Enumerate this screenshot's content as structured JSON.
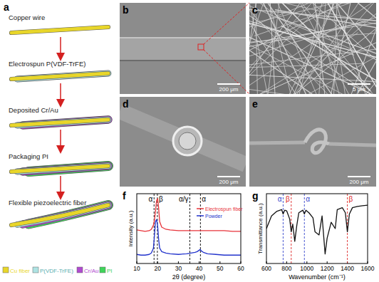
{
  "panel_labels": [
    "a",
    "b",
    "c",
    "d",
    "e",
    "f",
    "g"
  ],
  "schematic": {
    "steps": [
      "Copper wire",
      "Electrospun P(VDF-TrFE)",
      "Deposited Cr/Au",
      "Packaging PI",
      "Flexible piezoelectric fiber"
    ],
    "legend": [
      {
        "label": "Cu fiber",
        "color": "#e8d62a"
      },
      {
        "label": "P(VDF-TrFE)",
        "color": "#aee3e3"
      },
      {
        "label": "Cr/Au",
        "color": "#b04bd0"
      },
      {
        "label": "PI",
        "color": "#3fd45a"
      }
    ]
  },
  "micrographs": [
    {
      "scale_bar": "200 μm"
    },
    {
      "scale_bar": "5 μm"
    },
    {
      "scale_bar": "200 μm"
    },
    {
      "scale_bar": "200 μm"
    }
  ],
  "chart_data": [
    {
      "type": "line",
      "x_label": "2θ (degree)",
      "y_label": "Intensity (a.u.)",
      "xlim": [
        10,
        60
      ],
      "xticks": [
        10,
        20,
        30,
        40,
        50,
        60
      ],
      "ylim": [
        0,
        100
      ],
      "tick_labels": "x",
      "grid": false,
      "legend": "upper right",
      "x": [
        10,
        12,
        14,
        16,
        17,
        18,
        18.5,
        19,
        19.5,
        20,
        20.5,
        21,
        22,
        24,
        26,
        30,
        34,
        36,
        38,
        39,
        40,
        40.5,
        41,
        42,
        44,
        48,
        52,
        56,
        60
      ],
      "series": [
        {
          "name": "Electrospun fiber",
          "color": "#e8333a",
          "values": [
            48,
            47,
            46,
            47,
            49,
            55,
            62,
            75,
            90,
            93,
            80,
            60,
            52,
            49,
            48,
            47,
            47,
            47,
            47,
            47,
            47,
            47,
            47,
            47,
            47,
            47,
            47,
            46,
            46
          ]
        },
        {
          "name": "Powder",
          "color": "#2233cc",
          "values": [
            13,
            12,
            12,
            13,
            15,
            22,
            40,
            60,
            63,
            55,
            35,
            22,
            17,
            15,
            14,
            13,
            14,
            15,
            16,
            17,
            19,
            20,
            18,
            16,
            14,
            13,
            12,
            12,
            12
          ]
        }
      ],
      "annotations": [
        {
          "x": 18.3,
          "label": "α",
          "color": "#000000"
        },
        {
          "x": 19.9,
          "label": "β",
          "color": "#000000"
        },
        {
          "x": 35.5,
          "label": "α/γ",
          "color": "#000000"
        },
        {
          "x": 40.6,
          "label": "α",
          "color": "#000000"
        }
      ]
    },
    {
      "type": "line",
      "x_label": "Wavenumber (cm⁻¹)",
      "y_label": "Transmittance (a.u.)",
      "xlim": [
        600,
        1600
      ],
      "xticks": [
        600,
        800,
        1000,
        1200,
        1400,
        1600
      ],
      "ylim": [
        0,
        110
      ],
      "tick_labels": "x",
      "grid": false,
      "x": [
        600,
        650,
        700,
        750,
        765,
        780,
        800,
        830,
        845,
        860,
        880,
        900,
        920,
        960,
        975,
        990,
        1020,
        1060,
        1080,
        1120,
        1150,
        1180,
        1200,
        1240,
        1280,
        1300,
        1350,
        1380,
        1400,
        1420,
        1450,
        1500,
        1550,
        1600
      ],
      "series": [
        {
          "name": "P(VDF-TrFE)",
          "color": "#111111",
          "values": [
            55,
            75,
            82,
            85,
            78,
            84,
            83,
            70,
            50,
            62,
            35,
            60,
            80,
            84,
            78,
            84,
            80,
            72,
            50,
            45,
            75,
            15,
            40,
            65,
            55,
            85,
            88,
            80,
            50,
            78,
            88,
            90,
            91,
            92
          ]
        }
      ],
      "annotations": [
        {
          "x": 765,
          "label": "α",
          "color": "#3344cc"
        },
        {
          "x": 845,
          "label": "β",
          "color": "#dd2222"
        },
        {
          "x": 975,
          "label": "α",
          "color": "#3344cc"
        },
        {
          "x": 1400,
          "label": "β",
          "color": "#dd2222"
        }
      ]
    }
  ]
}
